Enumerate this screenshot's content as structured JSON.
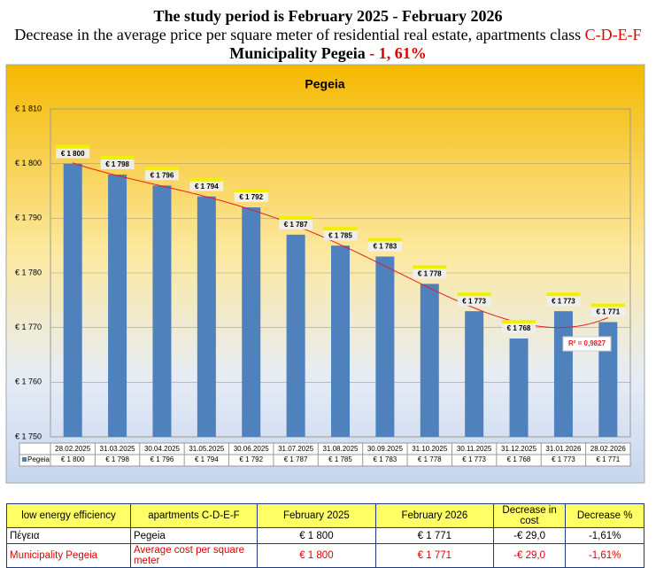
{
  "header": {
    "title": "The study period is February 2025 - February 2026",
    "subtitle": "Decrease in the average price per square meter of residential real estate, apartments class",
    "subtitle_highlight": "C-D-E-F",
    "municipality": "Municipality Pegeia",
    "change": "- 1, 61%"
  },
  "chart_data": {
    "type": "bar",
    "title": "Pegeia",
    "categories": [
      "28.02.2025",
      "31.03.2025",
      "30.04.2025",
      "31.05.2025",
      "30.06.2025",
      "31.07.2025",
      "31.08.2025",
      "30.09.2025",
      "31.10.2025",
      "30.11.2025",
      "31.12.2025",
      "31.01.2026",
      "28.02.2026"
    ],
    "series": [
      {
        "name": "Pegeia",
        "color": "#4f81bd",
        "values": [
          1800,
          1798,
          1796,
          1794,
          1792,
          1787,
          1785,
          1783,
          1778,
          1773,
          1768,
          1773,
          1771
        ],
        "value_labels": [
          "€ 1 800",
          "€ 1 798",
          "€ 1 796",
          "€ 1 794",
          "€ 1 792",
          "€ 1 787",
          "€ 1 785",
          "€ 1 783",
          "€ 1 778",
          "€ 1 773",
          "€ 1 768",
          "€ 1 773",
          "€ 1 771"
        ]
      }
    ],
    "ylim": [
      1750,
      1810
    ],
    "yticks": [
      {
        "value": 1750,
        "label": "€ 1 750"
      },
      {
        "value": 1760,
        "label": "€ 1 760"
      },
      {
        "value": 1770,
        "label": "€ 1 770"
      },
      {
        "value": 1780,
        "label": "€ 1 780"
      },
      {
        "value": 1790,
        "label": "€ 1 790"
      },
      {
        "value": 1800,
        "label": "€ 1 800"
      },
      {
        "value": 1810,
        "label": "€ 1 810"
      }
    ],
    "grid": true,
    "trendline": {
      "color": "#e31e24",
      "label": "R² = 0,9827"
    }
  },
  "table": {
    "columns": [
      "low energy efficiency",
      "apartments C-D-E-F",
      "February 2025",
      "February 2026",
      "Decrease in cost",
      "Decrease %"
    ],
    "rows": [
      [
        "Πέγεια",
        "Pegeia",
        "€ 1 800",
        "€ 1 771",
        "-€ 29,0",
        "-1,61%"
      ],
      [
        "Municipality Pegeia",
        "Average cost per square meter",
        "€ 1 800",
        "€ 1 771",
        "-€ 29,0",
        "-1,61%"
      ]
    ]
  }
}
